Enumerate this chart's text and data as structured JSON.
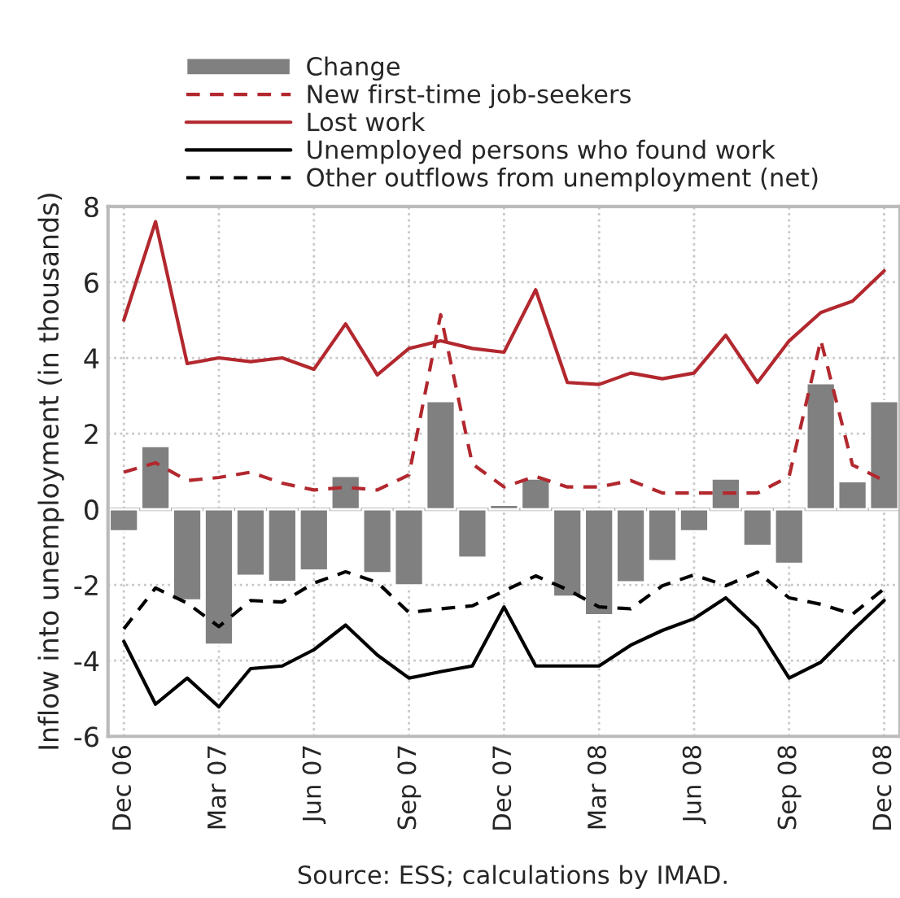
{
  "chart_data": {
    "type": "bar",
    "ylabel": "Inflow into unemployment (in thousands)",
    "annotations": [
      "Source: ESS; calculations by IMAD."
    ],
    "categories": [
      "Dec 06",
      null,
      null,
      "Mar 07",
      null,
      null,
      "Jun 07",
      null,
      null,
      "Sep 07",
      null,
      null,
      "Dec 07",
      null,
      null,
      "Mar 08",
      null,
      null,
      "Jun 08",
      null,
      null,
      "Sep 08",
      null,
      null,
      "Dec 08"
    ],
    "series": [
      {
        "name": "Change",
        "color": "#808080",
        "values": [
          -0.58,
          1.67,
          -2.41,
          -3.58,
          -1.76,
          -1.92,
          -1.62,
          0.88,
          -1.69,
          -2.01,
          2.86,
          -1.28,
          0.12,
          0.81,
          -2.31,
          -2.8,
          -1.93,
          -1.37,
          -0.58,
          0.81,
          -0.97,
          -1.44,
          3.33,
          0.74,
          2.86
        ]
      },
      {
        "name": "New first-time job-seekers",
        "type": "line",
        "line_style": "dashed",
        "color": "#b2282e",
        "values": [
          0.98,
          1.23,
          0.76,
          0.84,
          0.98,
          0.69,
          0.51,
          0.58,
          0.51,
          0.91,
          5.14,
          1.2,
          0.59,
          0.87,
          0.59,
          0.59,
          0.76,
          0.43,
          0.43,
          0.43,
          0.43,
          0.87,
          4.47,
          1.17,
          0.76
        ]
      },
      {
        "name": "Lost work",
        "type": "line",
        "line_style": "solid",
        "color": "#b2282e",
        "values": [
          5.0,
          7.6,
          3.85,
          4.0,
          3.9,
          4.0,
          3.7,
          4.9,
          3.55,
          4.25,
          4.45,
          4.25,
          4.15,
          5.8,
          3.35,
          3.3,
          3.6,
          3.45,
          3.6,
          4.6,
          3.35,
          4.45,
          5.2,
          5.5,
          6.3
        ]
      },
      {
        "name": "Unemployed persons who found work",
        "type": "line",
        "line_style": "solid",
        "color": "#000000",
        "values": [
          -3.49,
          -5.15,
          -4.46,
          -5.22,
          -4.21,
          -4.14,
          -3.71,
          -3.06,
          -3.85,
          -4.46,
          -4.29,
          -4.14,
          -2.58,
          -4.14,
          -4.14,
          -4.14,
          -3.59,
          -3.2,
          -2.89,
          -2.34,
          -3.13,
          -4.46,
          -4.04,
          -3.2,
          -2.41
        ]
      },
      {
        "name": "Other outflows from unemployment (net)",
        "type": "line",
        "line_style": "dashed",
        "color": "#000000",
        "values": [
          -3.16,
          -2.08,
          -2.48,
          -3.1,
          -2.41,
          -2.45,
          -1.95,
          -1.65,
          -1.93,
          -2.73,
          -2.63,
          -2.55,
          -2.16,
          -1.76,
          -2.12,
          -2.58,
          -2.63,
          -2.02,
          -1.73,
          -2.02,
          -1.66,
          -2.34,
          -2.51,
          -2.77,
          -2.1
        ]
      }
    ],
    "ylim": [
      -6,
      8
    ],
    "yticks": [
      -6,
      -4,
      -2,
      0,
      2,
      4,
      6,
      8
    ],
    "grid": true,
    "legend": "top"
  }
}
